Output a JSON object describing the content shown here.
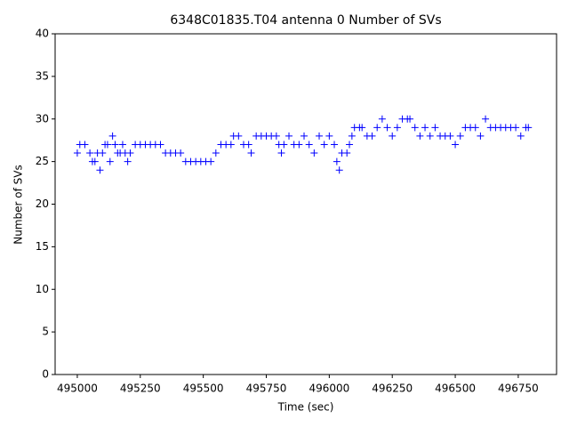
{
  "chart_data": {
    "type": "scatter",
    "title": "6348C01835.T04 antenna 0 Number of SVs",
    "x_label": "Time (sec)",
    "y_label": "Number of SVs",
    "marker": "+",
    "color": "#0000ff",
    "x": [
      495000,
      495010,
      495030,
      495050,
      495060,
      495070,
      495080,
      495090,
      495100,
      495110,
      495120,
      495130,
      495140,
      495150,
      495160,
      495170,
      495180,
      495190,
      495200,
      495210,
      495230,
      495250,
      495270,
      495290,
      495310,
      495330,
      495350,
      495370,
      495390,
      495410,
      495430,
      495450,
      495470,
      495490,
      495510,
      495530,
      495550,
      495570,
      495590,
      495610,
      495620,
      495640,
      495660,
      495680,
      495690,
      495710,
      495730,
      495750,
      495770,
      495790,
      495800,
      495810,
      495820,
      495840,
      495860,
      495880,
      495900,
      495920,
      495940,
      495960,
      495980,
      496000,
      496020,
      496030,
      496040,
      496050,
      496070,
      496080,
      496090,
      496100,
      496120,
      496130,
      496150,
      496170,
      496190,
      496210,
      496230,
      496250,
      496270,
      496290,
      496310,
      496320,
      496340,
      496360,
      496380,
      496400,
      496420,
      496440,
      496460,
      496480,
      496500,
      496520,
      496540,
      496560,
      496580,
      496600,
      496620,
      496640,
      496660,
      496680,
      496700,
      496720,
      496740,
      496760,
      496780,
      496790
    ],
    "values": [
      26,
      27,
      27,
      26,
      25,
      25,
      26,
      24,
      26,
      27,
      27,
      25,
      28,
      27,
      26,
      26,
      27,
      26,
      25,
      26,
      27,
      27,
      27,
      27,
      27,
      27,
      26,
      26,
      26,
      26,
      25,
      25,
      25,
      25,
      25,
      25,
      26,
      27,
      27,
      27,
      28,
      28,
      27,
      27,
      26,
      28,
      28,
      28,
      28,
      28,
      27,
      26,
      27,
      28,
      27,
      27,
      28,
      27,
      26,
      28,
      27,
      28,
      27,
      25,
      24,
      26,
      26,
      27,
      28,
      29,
      29,
      29,
      28,
      28,
      29,
      30,
      29,
      28,
      29,
      30,
      30,
      30,
      29,
      28,
      29,
      28,
      29,
      28,
      28,
      28,
      27,
      28,
      29,
      29,
      29,
      28,
      30,
      29,
      29,
      29,
      29,
      29,
      29,
      28,
      29,
      29
    ],
    "xlim": [
      494912,
      496902
    ],
    "xticks": [
      495000,
      495250,
      495500,
      495750,
      496000,
      496250,
      496500,
      496750
    ],
    "ylim": [
      0,
      40
    ],
    "yticks": [
      0,
      5,
      10,
      15,
      20,
      25,
      30,
      35,
      40
    ]
  }
}
